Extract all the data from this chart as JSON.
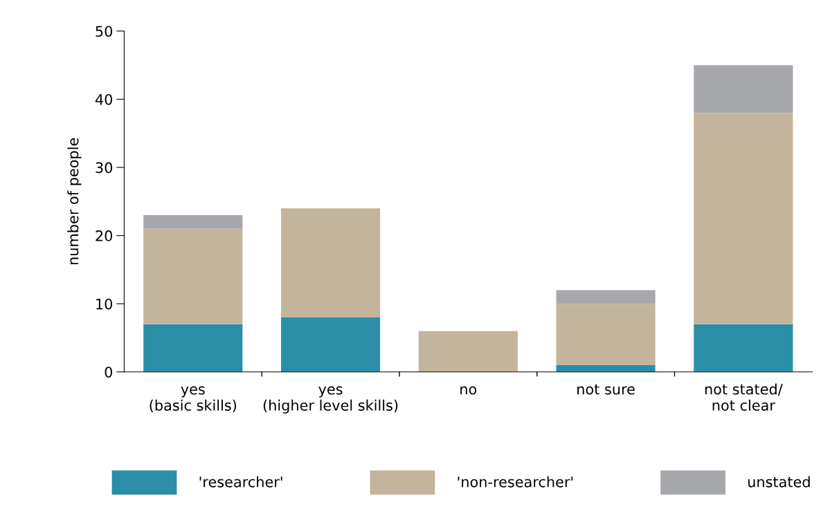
{
  "chart_data": {
    "type": "bar",
    "stacked": true,
    "ylabel": "number of people",
    "categories": [
      "yes\n(basic skills)",
      "yes\n(higher level skills)",
      "no",
      "not sure",
      "not stated/\nnot clear"
    ],
    "series": [
      {
        "name": "'researcher'",
        "color": "#2a8fa6",
        "values": [
          7,
          8,
          0,
          1,
          7
        ]
      },
      {
        "name": "'non-researcher'",
        "color": "#c4b49b",
        "values": [
          14,
          16,
          6,
          9,
          31
        ]
      },
      {
        "name": "unstated",
        "color": "#a7a8ac",
        "values": [
          2,
          0,
          0,
          2,
          7
        ]
      }
    ],
    "ylim": [
      0,
      50
    ],
    "yticks": [
      0,
      10,
      20,
      30,
      40,
      50
    ],
    "grid": false,
    "legend": "bottom"
  }
}
